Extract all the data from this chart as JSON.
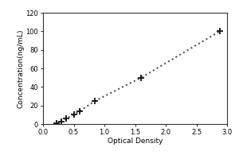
{
  "x_data": [
    0.22,
    0.3,
    0.38,
    0.5,
    0.6,
    0.85,
    1.6,
    2.88
  ],
  "y_data": [
    1.0,
    3.0,
    6.0,
    10.0,
    14.0,
    25.0,
    50.0,
    100.0
  ],
  "xlabel": "Optical Density",
  "ylabel": "Concentration(ng/mL)",
  "xlim": [
    0,
    3
  ],
  "ylim": [
    0,
    120
  ],
  "xticks": [
    0,
    0.5,
    1,
    1.5,
    2,
    2.5,
    3
  ],
  "yticks": [
    0,
    20,
    40,
    60,
    80,
    100,
    120
  ],
  "marker": "+",
  "marker_color": "#111111",
  "line_color": "#555555",
  "line_style": "dotted",
  "marker_size": 6,
  "marker_linewidth": 1.3,
  "line_width": 1.5,
  "bg_color": "#ffffff",
  "label_fontsize": 6.5,
  "tick_fontsize": 6,
  "fig_width": 3.0,
  "fig_height": 2.0,
  "dpi": 100
}
